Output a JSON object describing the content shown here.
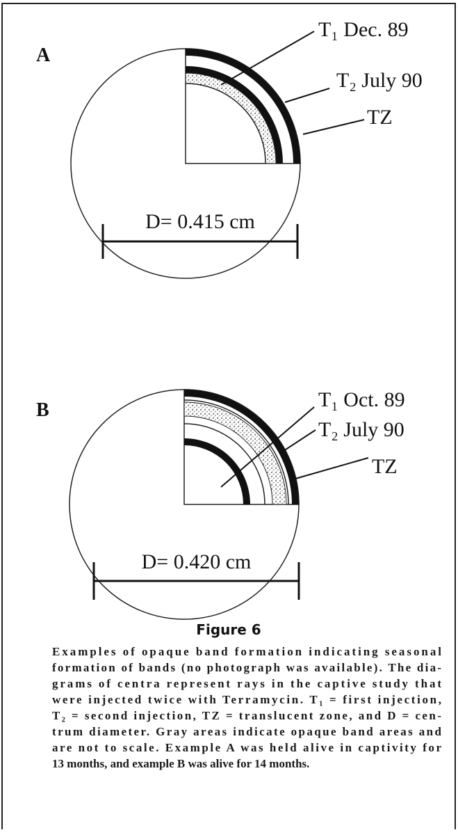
{
  "panels": [
    {
      "label": "A",
      "annotations": [
        "T₁ Dec. 89",
        "T₂ July 90",
        "TZ"
      ],
      "scale": "D= 0.415 cm"
    },
    {
      "label": "B",
      "annotations": [
        "T₁ Oct. 89",
        "T₂  July 90",
        "TZ"
      ],
      "scale": "D= 0.420 cm"
    }
  ],
  "figure": {
    "title": "Figure 6",
    "caption_lines": [
      "Examples of opaque band formation indicating seasonal",
      "formation of bands (no photograph was available). The dia-",
      "grams of centra represent rays in the captive study that",
      "were injected twice with Terramycin. T₁ = first injection,",
      "T₂ = second injection, TZ = translucent zone, and D = cen-",
      "trum diameter. Gray areas indicate opaque band areas and",
      "are not to scale. Example A was held alive in captivity for",
      "13 months, and example B was alive for 14 months."
    ]
  }
}
